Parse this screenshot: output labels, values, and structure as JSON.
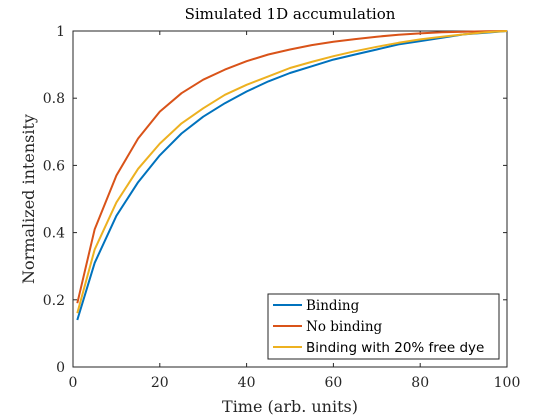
{
  "chart_data": {
    "type": "line",
    "title": "Simulated 1D accumulation",
    "xlabel": "Time (arb. units)",
    "ylabel": "Normalized intensity",
    "xlim": [
      0,
      100
    ],
    "ylim": [
      0,
      1
    ],
    "xticks": [
      0,
      20,
      40,
      60,
      80,
      100
    ],
    "yticks": [
      0,
      0.2,
      0.4,
      0.6,
      0.8,
      1
    ],
    "xtick_labels": [
      "0",
      "20",
      "40",
      "60",
      "80",
      "100"
    ],
    "ytick_labels": [
      "0",
      "0.2",
      "0.4",
      "0.6",
      "0.8",
      "1"
    ],
    "grid": false,
    "legend_position": "bottom-right",
    "x": [
      1,
      5,
      10,
      15,
      20,
      25,
      30,
      35,
      40,
      45,
      50,
      55,
      60,
      65,
      70,
      75,
      80,
      85,
      90,
      95,
      100
    ],
    "series": [
      {
        "name": "Binding",
        "color": "#0072BD",
        "values": [
          0.14,
          0.31,
          0.45,
          0.55,
          0.63,
          0.695,
          0.745,
          0.785,
          0.82,
          0.85,
          0.875,
          0.895,
          0.915,
          0.93,
          0.945,
          0.96,
          0.97,
          0.98,
          0.99,
          0.995,
          1.0
        ]
      },
      {
        "name": "No binding",
        "color": "#D95319",
        "values": [
          0.19,
          0.41,
          0.57,
          0.68,
          0.76,
          0.815,
          0.855,
          0.885,
          0.91,
          0.93,
          0.945,
          0.958,
          0.968,
          0.976,
          0.983,
          0.989,
          0.993,
          0.996,
          0.998,
          0.999,
          1.0
        ]
      },
      {
        "name": "Binding with 20% free dye",
        "color": "#EDB120",
        "values": [
          0.16,
          0.35,
          0.49,
          0.59,
          0.665,
          0.725,
          0.77,
          0.81,
          0.84,
          0.865,
          0.89,
          0.908,
          0.925,
          0.94,
          0.953,
          0.965,
          0.975,
          0.983,
          0.99,
          0.996,
          1.0
        ]
      }
    ]
  }
}
